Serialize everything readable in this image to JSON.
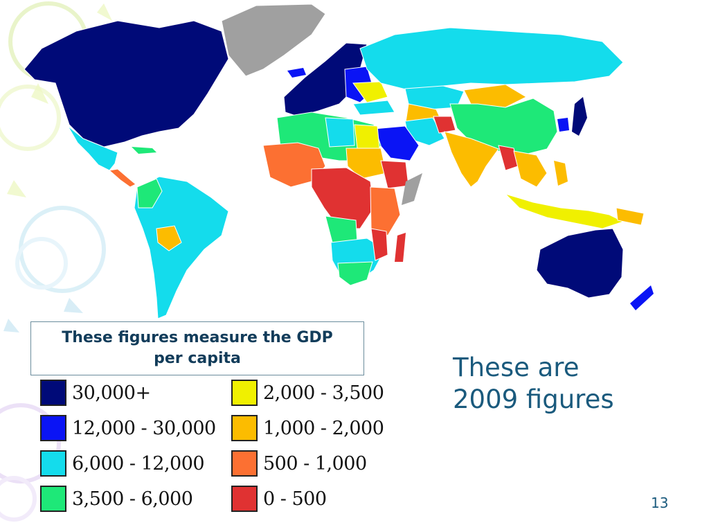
{
  "slide": {
    "caption": "These figures measure the GDP per capita",
    "note_line1": "These are",
    "note_line2": "2009 figures",
    "page_number": "13"
  },
  "legend": [
    {
      "label": "30,000+",
      "color": "#000a78"
    },
    {
      "label": "12,000 - 30,000",
      "color": "#0a14f5"
    },
    {
      "label": "6,000 - 12,000",
      "color": "#14dcec"
    },
    {
      "label": "3,500 - 6,000",
      "color": "#1ee878"
    },
    {
      "label": "2,000 - 3,500",
      "color": "#f0f000"
    },
    {
      "label": "1,000 - 2,000",
      "color": "#fcbc00"
    },
    {
      "label": "500 - 1,000",
      "color": "#fc7032"
    },
    {
      "label": "0 - 500",
      "color": "#e03232"
    }
  ],
  "map_colors": {
    "ocean": "#ffffff",
    "no_data": "#a0a0a0"
  }
}
